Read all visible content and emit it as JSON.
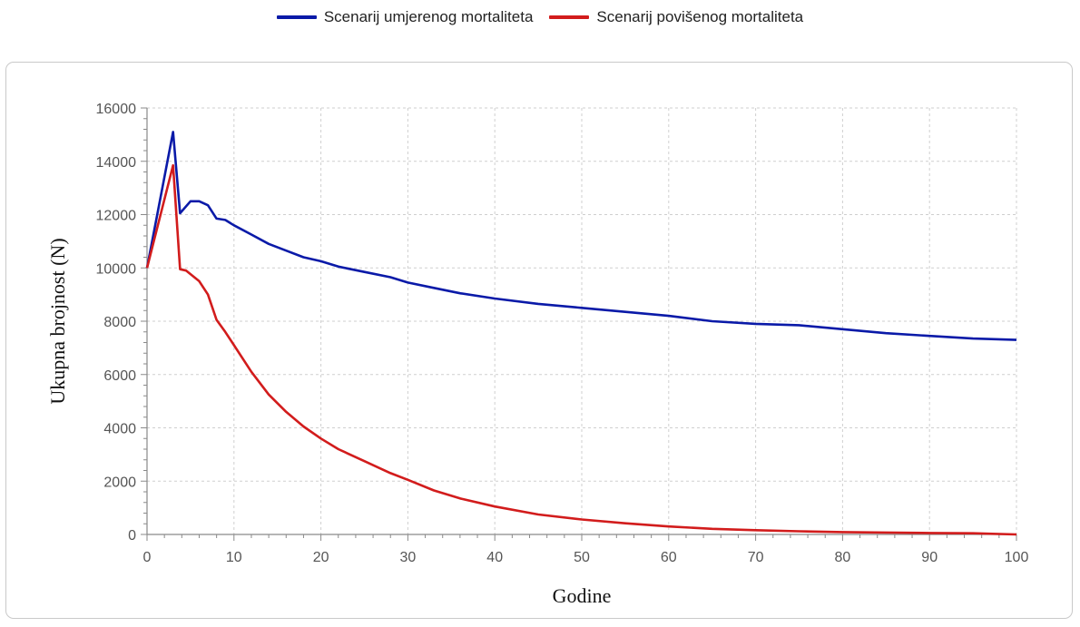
{
  "legend": {
    "items": [
      {
        "label": "Scenarij umjerenog mortaliteta",
        "color": "#0a1aa8"
      },
      {
        "label": "Scenarij povišenog mortaliteta",
        "color": "#d21c1c"
      }
    ]
  },
  "chart_data": {
    "type": "line",
    "xlabel": "Godine",
    "ylabel": "Ukupna brojnost (N)",
    "xlim": [
      0,
      100
    ],
    "ylim": [
      0,
      16000
    ],
    "xticks": [
      0,
      10,
      20,
      30,
      40,
      50,
      60,
      70,
      80,
      90,
      100
    ],
    "yticks": [
      0,
      2000,
      4000,
      6000,
      8000,
      10000,
      12000,
      14000,
      16000
    ],
    "grid": true,
    "legend_position": "top-center",
    "series": [
      {
        "name": "Scenarij umjerenog mortaliteta",
        "color": "#0a1aa8",
        "points": [
          [
            0,
            10000
          ],
          [
            3,
            15100
          ],
          [
            3.8,
            12050
          ],
          [
            5,
            12500
          ],
          [
            6,
            12500
          ],
          [
            7,
            12350
          ],
          [
            8,
            11850
          ],
          [
            9,
            11800
          ],
          [
            10,
            11600
          ],
          [
            12,
            11250
          ],
          [
            14,
            10900
          ],
          [
            16,
            10650
          ],
          [
            18,
            10400
          ],
          [
            20,
            10250
          ],
          [
            22,
            10050
          ],
          [
            25,
            9850
          ],
          [
            28,
            9650
          ],
          [
            30,
            9450
          ],
          [
            33,
            9250
          ],
          [
            36,
            9050
          ],
          [
            40,
            8850
          ],
          [
            45,
            8650
          ],
          [
            50,
            8500
          ],
          [
            55,
            8350
          ],
          [
            60,
            8200
          ],
          [
            65,
            8000
          ],
          [
            70,
            7900
          ],
          [
            75,
            7850
          ],
          [
            80,
            7700
          ],
          [
            85,
            7550
          ],
          [
            90,
            7450
          ],
          [
            95,
            7350
          ],
          [
            100,
            7300
          ]
        ]
      },
      {
        "name": "Scenarij povišenog mortaliteta",
        "color": "#d21c1c",
        "points": [
          [
            0,
            10000
          ],
          [
            3,
            13850
          ],
          [
            3.8,
            9950
          ],
          [
            4.5,
            9900
          ],
          [
            6,
            9500
          ],
          [
            7,
            9000
          ],
          [
            8,
            8050
          ],
          [
            9,
            7600
          ],
          [
            10,
            7100
          ],
          [
            12,
            6100
          ],
          [
            14,
            5250
          ],
          [
            16,
            4600
          ],
          [
            18,
            4050
          ],
          [
            20,
            3600
          ],
          [
            22,
            3200
          ],
          [
            25,
            2750
          ],
          [
            28,
            2300
          ],
          [
            30,
            2050
          ],
          [
            33,
            1650
          ],
          [
            36,
            1350
          ],
          [
            40,
            1050
          ],
          [
            45,
            750
          ],
          [
            50,
            560
          ],
          [
            55,
            420
          ],
          [
            60,
            300
          ],
          [
            65,
            210
          ],
          [
            70,
            160
          ],
          [
            75,
            120
          ],
          [
            80,
            90
          ],
          [
            85,
            70
          ],
          [
            90,
            55
          ],
          [
            95,
            45
          ],
          [
            100,
            0
          ]
        ]
      }
    ]
  }
}
